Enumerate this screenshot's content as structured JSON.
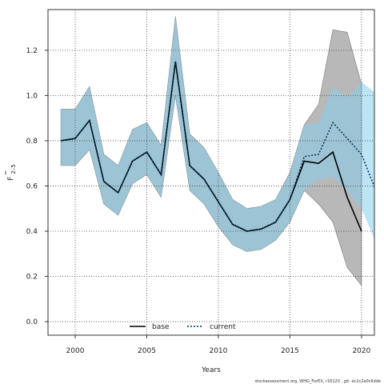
{
  "chart_data": {
    "type": "line",
    "xlabel": "Years",
    "ylabel_main": "F",
    "ylabel_sub": "2–5",
    "xlim": [
      1998.1,
      2020.9
    ],
    "ylim": [
      -0.06,
      1.38
    ],
    "xticks": [
      2000,
      2005,
      2010,
      2015,
      2020
    ],
    "yticks": [
      0.0,
      0.2,
      0.4,
      0.6,
      0.8,
      1.0,
      1.2
    ],
    "grid": true,
    "legend_position": "bottom-left",
    "series": [
      {
        "name": "base",
        "color": "#000000",
        "style": "solid",
        "band_color": "#a0a0a0",
        "x": [
          1999,
          2000,
          2001,
          2002,
          2003,
          2004,
          2005,
          2006,
          2007,
          2008,
          2009,
          2010,
          2011,
          2012,
          2013,
          2014,
          2015,
          2016,
          2017,
          2018,
          2019,
          2020
        ],
        "values": [
          0.8,
          0.81,
          0.89,
          0.62,
          0.57,
          0.71,
          0.75,
          0.65,
          1.15,
          0.69,
          0.63,
          0.53,
          0.43,
          0.4,
          0.41,
          0.44,
          0.54,
          0.71,
          0.7,
          0.75,
          0.55,
          0.4
        ],
        "lower": [
          0.69,
          0.69,
          0.76,
          0.52,
          0.47,
          0.61,
          0.65,
          0.55,
          1.0,
          0.58,
          0.52,
          0.42,
          0.34,
          0.31,
          0.32,
          0.36,
          0.44,
          0.58,
          0.52,
          0.44,
          0.24,
          0.16
        ],
        "upper": [
          0.94,
          0.94,
          1.04,
          0.74,
          0.69,
          0.85,
          0.88,
          0.78,
          1.35,
          0.83,
          0.77,
          0.66,
          0.54,
          0.5,
          0.51,
          0.54,
          0.66,
          0.87,
          0.96,
          1.29,
          1.28,
          1.05
        ]
      },
      {
        "name": "current",
        "color": "#003355",
        "style": "dotted",
        "band_color": "#87ceeb",
        "x": [
          1999,
          2000,
          2001,
          2002,
          2003,
          2004,
          2005,
          2006,
          2007,
          2008,
          2009,
          2010,
          2011,
          2012,
          2013,
          2014,
          2015,
          2016,
          2017,
          2018,
          2019,
          2020,
          2021
        ],
        "values": [
          0.8,
          0.81,
          0.89,
          0.62,
          0.57,
          0.71,
          0.75,
          0.65,
          1.15,
          0.69,
          0.63,
          0.53,
          0.43,
          0.4,
          0.41,
          0.44,
          0.54,
          0.73,
          0.74,
          0.88,
          0.81,
          0.74,
          0.58
        ],
        "lower": [
          0.69,
          0.69,
          0.76,
          0.52,
          0.47,
          0.61,
          0.65,
          0.55,
          1.0,
          0.58,
          0.52,
          0.42,
          0.34,
          0.31,
          0.32,
          0.36,
          0.44,
          0.58,
          0.63,
          0.64,
          0.58,
          0.5,
          0.35
        ],
        "upper": [
          0.94,
          0.94,
          1.04,
          0.74,
          0.69,
          0.85,
          0.88,
          0.78,
          1.35,
          0.83,
          0.77,
          0.66,
          0.54,
          0.5,
          0.51,
          0.54,
          0.66,
          0.87,
          0.88,
          1.04,
          0.99,
          1.06,
          1.01
        ]
      }
    ]
  },
  "footer_text": "stockassessment.org, WHG_ForEX, r16120 , git: ec2c2a0c6dde"
}
